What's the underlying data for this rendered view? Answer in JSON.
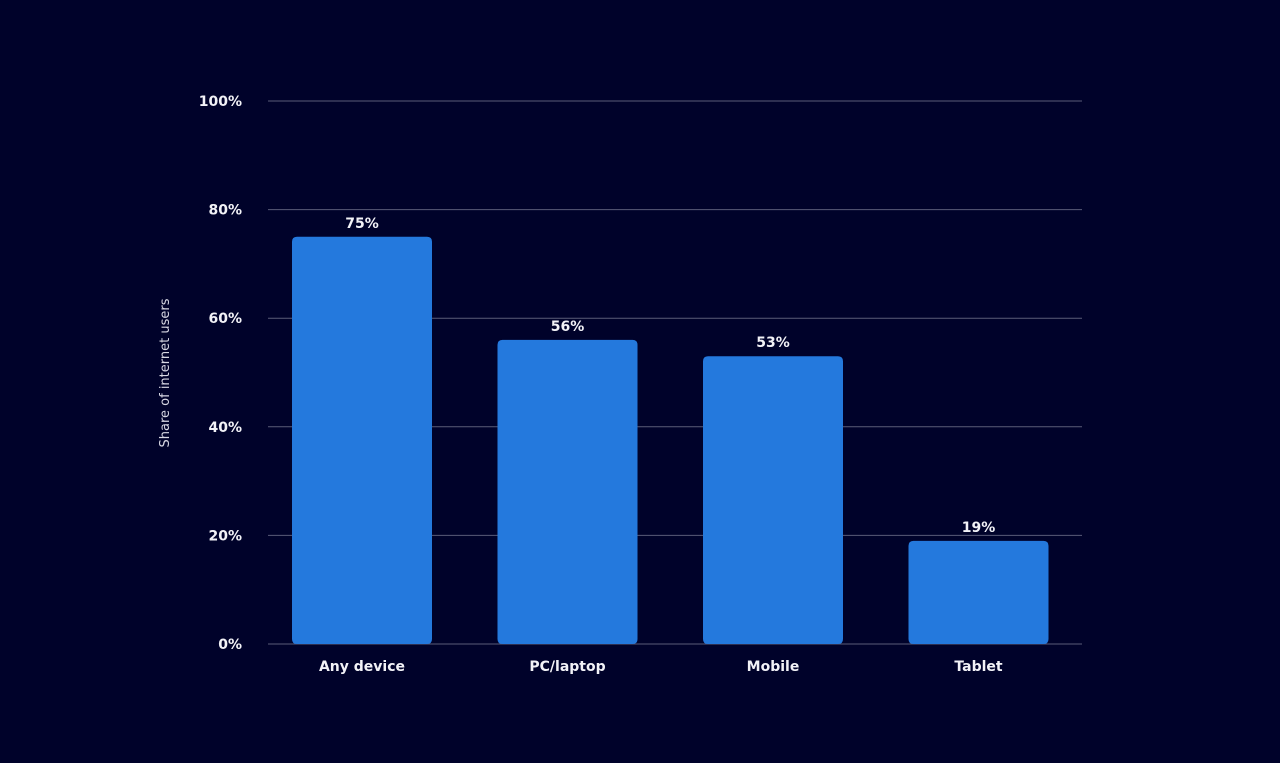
{
  "chart_data": {
    "type": "bar",
    "categories": [
      "Any device",
      "PC/laptop",
      "Mobile",
      "Tablet"
    ],
    "values": [
      75,
      56,
      53,
      19
    ],
    "value_labels": [
      "75%",
      "56%",
      "53%",
      "19%"
    ],
    "ylabel": "Share of internet users",
    "ylim": [
      0,
      100
    ],
    "y_ticks": [
      0,
      20,
      40,
      60,
      80,
      100
    ],
    "y_tick_labels": [
      "0%",
      "20%",
      "40%",
      "60%",
      "80%",
      "100%"
    ],
    "grid": true,
    "colors": {
      "background": "#00022a",
      "bar": "#2479dd",
      "grid": "#5a5c78",
      "text": "#f2f2f7"
    }
  }
}
